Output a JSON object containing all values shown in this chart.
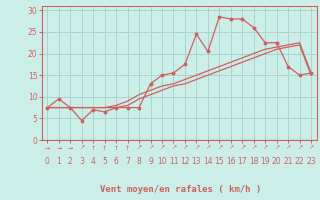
{
  "bg_color": "#cceee8",
  "grid_color": "#aad4ce",
  "line_color": "#d06060",
  "xlabel": "Vent moyen/en rafales ( km/h )",
  "ylabel_ticks": [
    0,
    5,
    10,
    15,
    20,
    25,
    30
  ],
  "xlim": [
    -0.5,
    23.5
  ],
  "ylim": [
    0,
    31
  ],
  "xticks": [
    0,
    1,
    2,
    3,
    4,
    5,
    6,
    7,
    8,
    9,
    10,
    11,
    12,
    13,
    14,
    15,
    16,
    17,
    18,
    19,
    20,
    21,
    22,
    23
  ],
  "line1_x": [
    0,
    1,
    2,
    3,
    4,
    5,
    6,
    7,
    8,
    9,
    10,
    11,
    12,
    13,
    14,
    15,
    16,
    17,
    18,
    19,
    20,
    21,
    22,
    23
  ],
  "line1_y": [
    7.5,
    9.5,
    7.5,
    4.5,
    7.0,
    6.5,
    7.5,
    7.5,
    7.5,
    13.0,
    15.0,
    15.5,
    17.5,
    24.5,
    20.5,
    28.5,
    28.0,
    28.0,
    26.0,
    22.5,
    22.5,
    17.0,
    15.0,
    15.5
  ],
  "line2_x": [
    0,
    1,
    2,
    3,
    4,
    5,
    6,
    7,
    8,
    9,
    10,
    11,
    12,
    13,
    14,
    15,
    16,
    17,
    18,
    19,
    20,
    21,
    22,
    23
  ],
  "line2_y": [
    7.5,
    7.5,
    7.5,
    7.5,
    7.5,
    7.5,
    8.0,
    9.0,
    10.5,
    11.5,
    12.5,
    13.0,
    14.0,
    15.0,
    16.0,
    17.0,
    18.0,
    19.0,
    20.0,
    21.0,
    21.5,
    22.0,
    22.5,
    15.5
  ],
  "line3_x": [
    0,
    1,
    2,
    3,
    4,
    5,
    6,
    7,
    8,
    9,
    10,
    11,
    12,
    13,
    14,
    15,
    16,
    17,
    18,
    19,
    20,
    21,
    22,
    23
  ],
  "line3_y": [
    7.5,
    7.5,
    7.5,
    7.5,
    7.5,
    7.5,
    7.5,
    8.0,
    9.5,
    10.5,
    11.5,
    12.5,
    13.0,
    14.0,
    15.0,
    16.0,
    17.0,
    18.0,
    19.0,
    20.0,
    21.0,
    21.5,
    22.0,
    15.0
  ],
  "arrow_chars": [
    "→",
    "→",
    "→",
    "↗",
    "↑",
    "↑",
    "↑",
    "↑",
    "↗",
    "↗",
    "↗",
    "↗",
    "↗",
    "↗",
    "↗",
    "↗",
    "↗",
    "↗",
    "↗",
    "↗",
    "↗",
    "↗",
    "↗",
    "↗"
  ],
  "label_fontsize": 6.5,
  "tick_fontsize": 5.5,
  "arrow_fontsize": 4.5
}
